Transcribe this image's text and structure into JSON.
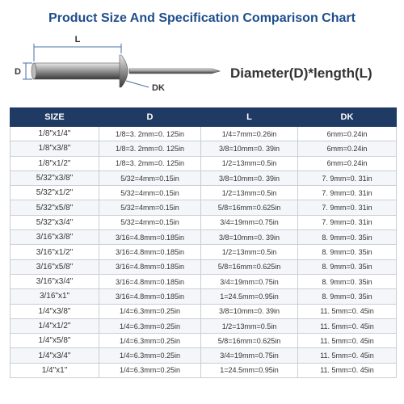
{
  "header": {
    "title": "Product Size And Specification Comparison Chart"
  },
  "diagram": {
    "length_label": "L",
    "diameter_label": "D",
    "head_label": "DK",
    "formula": "Diameter(D)*length(L)"
  },
  "table": {
    "columns": [
      "SIZE",
      "D",
      "L",
      "DK"
    ],
    "rows": [
      [
        "1/8\"x1/4\"",
        "1/8=3. 2mm=0. 125in",
        "1/4=7mm=0.26in",
        "6mm=0.24in"
      ],
      [
        "1/8\"x3/8\"",
        "1/8=3. 2mm=0. 125in",
        "3/8=10mm=0. 39in",
        "6mm=0.24in"
      ],
      [
        "1/8\"x1/2\"",
        "1/8=3. 2mm=0. 125in",
        "1/2=13mm=0.5in",
        "6mm=0.24in"
      ],
      [
        "5/32\"x3/8\"",
        "5/32=4mm=0.15in",
        "3/8=10mm=0. 39in",
        "7. 9mm=0. 31in"
      ],
      [
        "5/32\"x1/2\"",
        "5/32=4mm=0.15in",
        "1/2=13mm=0.5in",
        "7. 9mm=0. 31in"
      ],
      [
        "5/32\"x5/8\"",
        "5/32=4mm=0.15in",
        "5/8=16mm=0.625in",
        "7. 9mm=0. 31in"
      ],
      [
        "5/32\"x3/4\"",
        "5/32=4mm=0.15in",
        "3/4=19mm=0.75in",
        "7. 9mm=0. 31in"
      ],
      [
        "3/16\"x3/8\"",
        "3/16=4.8mm=0.185in",
        "3/8=10mm=0. 39in",
        "8. 9mm=0. 35in"
      ],
      [
        "3/16\"x1/2\"",
        "3/16=4.8mm=0.185in",
        "1/2=13mm=0.5in",
        "8. 9mm=0. 35in"
      ],
      [
        "3/16\"x5/8\"",
        "3/16=4.8mm=0.185in",
        "5/8=16mm=0.625in",
        "8. 9mm=0. 35in"
      ],
      [
        "3/16\"x3/4\"",
        "3/16=4.8mm=0.185in",
        "3/4=19mm=0.75in",
        "8. 9mm=0. 35in"
      ],
      [
        "3/16\"x1\"",
        "3/16=4.8mm=0.185in",
        "1=24.5mm=0.95in",
        "8. 9mm=0. 35in"
      ],
      [
        "1/4\"x3/8\"",
        "1/4=6.3mm=0.25in",
        "3/8=10mm=0. 39in",
        "11. 5mm=0. 45in"
      ],
      [
        "1/4\"x1/2\"",
        "1/4=6.3mm=0.25in",
        "1/2=13mm=0.5in",
        "11. 5mm=0. 45in"
      ],
      [
        "1/4\"x5/8\"",
        "1/4=6.3mm=0.25in",
        "5/8=16mm=0.625in",
        "11. 5mm=0. 45in"
      ],
      [
        "1/4\"x3/4\"",
        "1/4=6.3mm=0.25in",
        "3/4=19mm=0.75in",
        "11. 5mm=0. 45in"
      ],
      [
        "1/4\"x1\"",
        "1/4=6.3mm=0.25in",
        "1=24.5mm=0.95in",
        "11. 5mm=0. 45in"
      ]
    ]
  }
}
